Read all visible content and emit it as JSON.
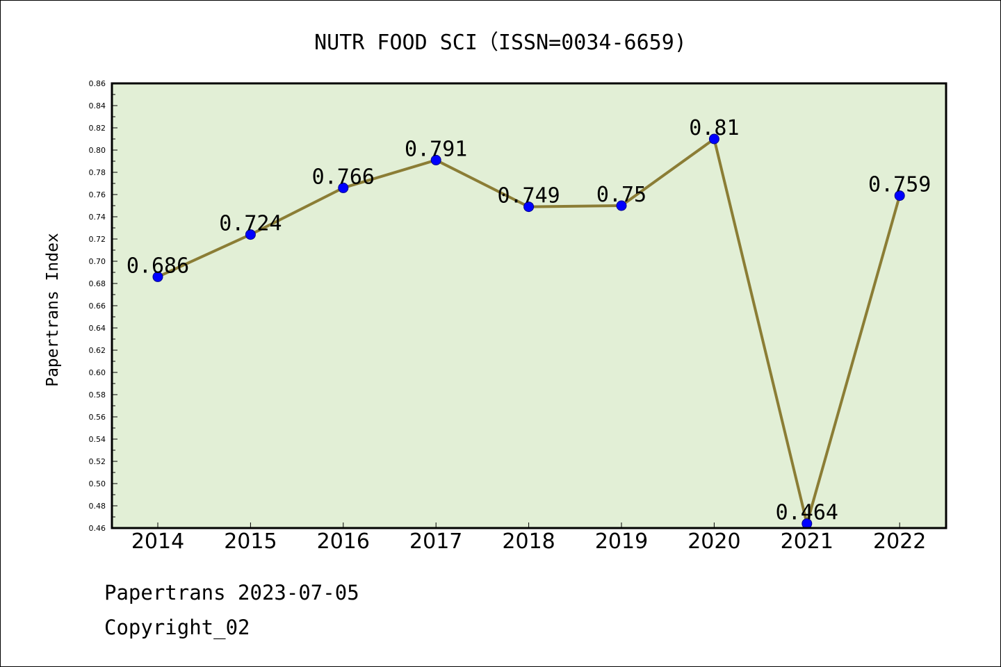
{
  "chart_data": {
    "type": "line",
    "title": "NUTR FOOD SCI（ISSN=0034-6659)",
    "xlabel": "",
    "ylabel": "Papertrans Index",
    "categories": [
      "2014",
      "2015",
      "2016",
      "2017",
      "2018",
      "2019",
      "2020",
      "2021",
      "2022"
    ],
    "series": [
      {
        "values": [
          0.686,
          0.724,
          0.766,
          0.791,
          0.749,
          0.75,
          0.81,
          0.464,
          0.759
        ]
      }
    ],
    "data_labels": [
      "0.686",
      "0.724",
      "0.766",
      "0.791",
      "0.749",
      "0.75",
      "0.81",
      "0.464",
      "0.759"
    ],
    "ylim": [
      0.46,
      0.86
    ],
    "y_ticks": [
      "0.46",
      "0.48",
      "0.50",
      "0.52",
      "0.54",
      "0.56",
      "0.58",
      "0.60",
      "0.62",
      "0.64",
      "0.66",
      "0.68",
      "0.70",
      "0.72",
      "0.74",
      "0.76",
      "0.78",
      "0.80",
      "0.82",
      "0.84",
      "0.86"
    ],
    "grid": false,
    "colors": {
      "plot_background": "#e2efd6",
      "line": "#8b7d35",
      "marker": "#0000ff"
    }
  },
  "footer": {
    "line1": "Papertrans 2023-07-05",
    "line2": "Copyright_02"
  }
}
